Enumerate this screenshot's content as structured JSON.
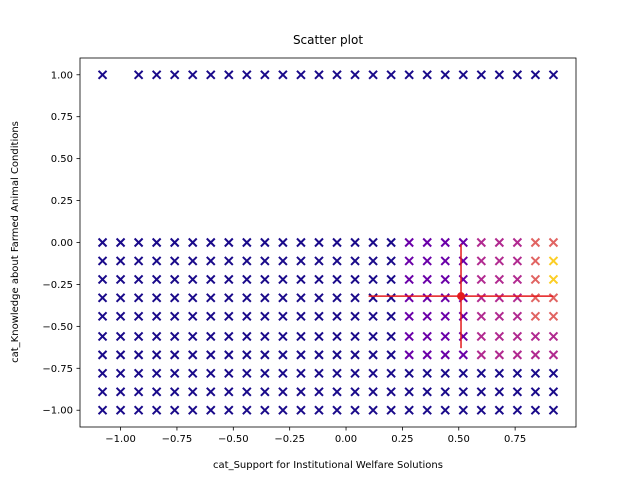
{
  "chart_data": {
    "type": "scatter",
    "title": "Scatter plot",
    "x_label": "cat_Support for Institutional Welfare Solutions",
    "y_label": "cat_Knowledge about Farmed Animal Conditions",
    "marker": "x",
    "xlim": [
      -1.18,
      1.02
    ],
    "ylim": [
      -1.1,
      1.1
    ],
    "xticks": [
      {
        "value": -1,
        "label": "−1.00"
      },
      {
        "value": -0.75,
        "label": "−0.75"
      },
      {
        "value": -0.5,
        "label": "−0.50"
      },
      {
        "value": -0.25,
        "label": "−0.25"
      },
      {
        "value": 0,
        "label": "0.00"
      },
      {
        "value": 0.25,
        "label": "0.25"
      },
      {
        "value": 0.5,
        "label": "0.50"
      },
      {
        "value": 0.75,
        "label": "0.75"
      }
    ],
    "yticks": [
      {
        "value": -1,
        "label": "−1.00"
      },
      {
        "value": -0.75,
        "label": "−0.75"
      },
      {
        "value": -0.5,
        "label": "−0.50"
      },
      {
        "value": -0.25,
        "label": "−0.25"
      },
      {
        "value": 0,
        "label": "0.00"
      },
      {
        "value": 0.25,
        "label": "0.25"
      },
      {
        "value": 0.5,
        "label": "0.50"
      },
      {
        "value": 0.75,
        "label": "0.75"
      },
      {
        "value": 1,
        "label": "1.00"
      }
    ],
    "series": [
      {
        "color": "#1a0a8a",
        "x": [
          -1.08,
          -0.92,
          -0.84,
          -0.76,
          -0.68,
          -0.6,
          -0.52,
          -0.44,
          -0.36,
          -0.28,
          -0.2,
          -0.12,
          -0.04,
          0.04,
          0.12,
          0.2,
          0.28,
          0.36,
          0.44,
          0.52,
          0.6,
          0.68,
          0.76,
          0.84,
          0.92,
          -1.08,
          -1.0,
          -0.92,
          -0.84,
          -0.76,
          -0.68,
          -0.6,
          -0.52,
          -0.44,
          -0.36,
          -0.28,
          -0.2,
          -0.12,
          -0.04,
          0.04,
          0.12,
          0.2,
          -1.08,
          -1.0,
          -0.92,
          -0.84,
          -0.76,
          -0.68,
          -0.6,
          -0.52,
          -0.44,
          -0.36,
          -0.28,
          -0.2,
          -0.12,
          -0.04,
          0.04,
          0.12,
          0.2,
          -1.08,
          -1.0,
          -0.92,
          -0.84,
          -0.76,
          -0.68,
          -0.6,
          -0.52,
          -0.44,
          -0.36,
          -0.28,
          -0.2,
          -0.12,
          -0.04,
          0.04,
          0.12,
          0.2,
          -1.08,
          -1.0,
          -0.92,
          -0.84,
          -0.76,
          -0.68,
          -0.6,
          -0.52,
          -0.44,
          -0.36,
          -0.28,
          -0.2,
          -0.12,
          -0.04,
          0.04,
          0.12,
          0.2,
          -1.08,
          -1.0,
          -0.92,
          -0.84,
          -0.76,
          -0.68,
          -0.6,
          -0.52,
          -0.44,
          -0.36,
          -0.28,
          -0.2,
          -0.12,
          -0.04,
          0.04,
          0.12,
          0.2,
          -1.08,
          -1.0,
          -0.92,
          -0.84,
          -0.76,
          -0.68,
          -0.6,
          -0.52,
          -0.44,
          -0.36,
          -0.28,
          -0.2,
          -0.12,
          -0.04,
          0.04,
          0.12,
          0.2,
          -1.08,
          -1.0,
          -0.92,
          -0.84,
          -0.76,
          -0.68,
          -0.6,
          -0.52,
          -0.44,
          -0.36,
          -0.28,
          -0.2,
          -0.12,
          -0.04,
          0.04,
          0.12,
          0.2,
          -1.08,
          -1.0,
          -0.92,
          -0.84,
          -0.76,
          -0.68,
          -0.6,
          -0.52,
          -0.44,
          -0.36,
          -0.28,
          -0.2,
          -0.12,
          -0.04,
          0.04,
          0.12,
          0.2,
          0.28,
          0.36,
          0.44,
          0.52,
          0.6,
          0.68,
          0.76,
          0.84,
          0.92,
          -1.08,
          -1.0,
          -0.92,
          -0.84,
          -0.76,
          -0.68,
          -0.6,
          -0.52,
          -0.44,
          -0.36,
          -0.28,
          -0.2,
          -0.12,
          -0.04,
          0.04,
          0.12,
          0.2,
          0.28,
          0.36,
          0.44,
          0.52,
          0.6,
          0.68,
          0.76,
          0.84,
          0.92,
          -1.08,
          -1.0,
          -0.92,
          -0.84,
          -0.76,
          -0.68,
          -0.6,
          -0.52,
          -0.44,
          -0.36,
          -0.28,
          -0.2,
          -0.12,
          -0.04,
          0.04,
          0.12,
          0.2,
          0.28,
          0.36,
          0.44,
          0.52,
          0.6,
          0.68,
          0.76,
          0.84,
          0.92
        ],
        "values": [
          1,
          1,
          1,
          1,
          1,
          1,
          1,
          1,
          1,
          1,
          1,
          1,
          1,
          1,
          1,
          1,
          1,
          1,
          1,
          1,
          1,
          1,
          1,
          1,
          1,
          0,
          0,
          0,
          0,
          0,
          0,
          0,
          0,
          0,
          0,
          0,
          0,
          0,
          0,
          0,
          0,
          0,
          -0.11,
          -0.11,
          -0.11,
          -0.11,
          -0.11,
          -0.11,
          -0.11,
          -0.11,
          -0.11,
          -0.11,
          -0.11,
          -0.11,
          -0.11,
          -0.11,
          -0.11,
          -0.11,
          -0.11,
          -0.22,
          -0.22,
          -0.22,
          -0.22,
          -0.22,
          -0.22,
          -0.22,
          -0.22,
          -0.22,
          -0.22,
          -0.22,
          -0.22,
          -0.22,
          -0.22,
          -0.22,
          -0.22,
          -0.22,
          -0.33,
          -0.33,
          -0.33,
          -0.33,
          -0.33,
          -0.33,
          -0.33,
          -0.33,
          -0.33,
          -0.33,
          -0.33,
          -0.33,
          -0.33,
          -0.33,
          -0.33,
          -0.33,
          -0.33,
          -0.44,
          -0.44,
          -0.44,
          -0.44,
          -0.44,
          -0.44,
          -0.44,
          -0.44,
          -0.44,
          -0.44,
          -0.44,
          -0.44,
          -0.44,
          -0.44,
          -0.44,
          -0.44,
          -0.44,
          -0.56,
          -0.56,
          -0.56,
          -0.56,
          -0.56,
          -0.56,
          -0.56,
          -0.56,
          -0.56,
          -0.56,
          -0.56,
          -0.56,
          -0.56,
          -0.56,
          -0.56,
          -0.56,
          -0.56,
          -0.67,
          -0.67,
          -0.67,
          -0.67,
          -0.67,
          -0.67,
          -0.67,
          -0.67,
          -0.67,
          -0.67,
          -0.67,
          -0.67,
          -0.67,
          -0.67,
          -0.67,
          -0.67,
          -0.67,
          -0.78,
          -0.78,
          -0.78,
          -0.78,
          -0.78,
          -0.78,
          -0.78,
          -0.78,
          -0.78,
          -0.78,
          -0.78,
          -0.78,
          -0.78,
          -0.78,
          -0.78,
          -0.78,
          -0.78,
          -0.78,
          -0.78,
          -0.78,
          -0.78,
          -0.78,
          -0.78,
          -0.78,
          -0.78,
          -0.78,
          -0.89,
          -0.89,
          -0.89,
          -0.89,
          -0.89,
          -0.89,
          -0.89,
          -0.89,
          -0.89,
          -0.89,
          -0.89,
          -0.89,
          -0.89,
          -0.89,
          -0.89,
          -0.89,
          -0.89,
          -0.89,
          -0.89,
          -0.89,
          -0.89,
          -0.89,
          -0.89,
          -0.89,
          -0.89,
          -0.89,
          -1,
          -1,
          -1,
          -1,
          -1,
          -1,
          -1,
          -1,
          -1,
          -1,
          -1,
          -1,
          -1,
          -1,
          -1,
          -1,
          -1,
          -1,
          -1,
          -1,
          -1,
          -1,
          -1,
          -1,
          -1,
          -1
        ]
      },
      {
        "color": "#6a00a8",
        "x": [
          0.28,
          0.36,
          0.44,
          0.52,
          0.28,
          0.36,
          0.44,
          0.52,
          0.28,
          0.36,
          0.44,
          0.52,
          0.28,
          0.36,
          0.44,
          0.52,
          0.28,
          0.36,
          0.44,
          0.52,
          0.28,
          0.36,
          0.44,
          0.52,
          0.28,
          0.36,
          0.44,
          0.52
        ],
        "values": [
          0,
          0,
          0,
          0,
          -0.11,
          -0.11,
          -0.11,
          -0.11,
          -0.22,
          -0.22,
          -0.22,
          -0.22,
          -0.33,
          -0.33,
          -0.33,
          -0.33,
          -0.44,
          -0.44,
          -0.44,
          -0.44,
          -0.56,
          -0.56,
          -0.56,
          -0.56,
          -0.67,
          -0.67,
          -0.67,
          -0.67
        ]
      },
      {
        "color": "#b12a90",
        "x": [
          0.6,
          0.68,
          0.76,
          0.6,
          0.68,
          0.76,
          0.6,
          0.68,
          0.76,
          0.6,
          0.68,
          0.76,
          0.6,
          0.68,
          0.76,
          0.6,
          0.68,
          0.76,
          0.6,
          0.68,
          0.76,
          0.84,
          0.84,
          0.92,
          0.92
        ],
        "values": [
          0,
          0,
          0,
          -0.11,
          -0.11,
          -0.11,
          -0.22,
          -0.22,
          -0.22,
          -0.33,
          -0.33,
          -0.33,
          -0.44,
          -0.44,
          -0.44,
          -0.56,
          -0.56,
          -0.56,
          -0.67,
          -0.67,
          -0.67,
          -0.56,
          -0.67,
          -0.56,
          -0.67
        ]
      },
      {
        "color": "#e16462",
        "x": [
          0.84,
          0.84,
          0.84,
          0.84,
          0.84,
          0.92,
          0.92,
          0.92
        ],
        "values": [
          0,
          -0.11,
          -0.22,
          -0.33,
          -0.44,
          0,
          -0.33,
          -0.44
        ]
      },
      {
        "color": "#fcce25",
        "x": [
          0.92,
          0.92
        ],
        "values": [
          -0.11,
          -0.22
        ]
      }
    ],
    "errorbar": {
      "x": 0.51,
      "values": -0.32,
      "xerr": 0.41,
      "yerr": 0.31,
      "color": "#e41a1c"
    }
  }
}
